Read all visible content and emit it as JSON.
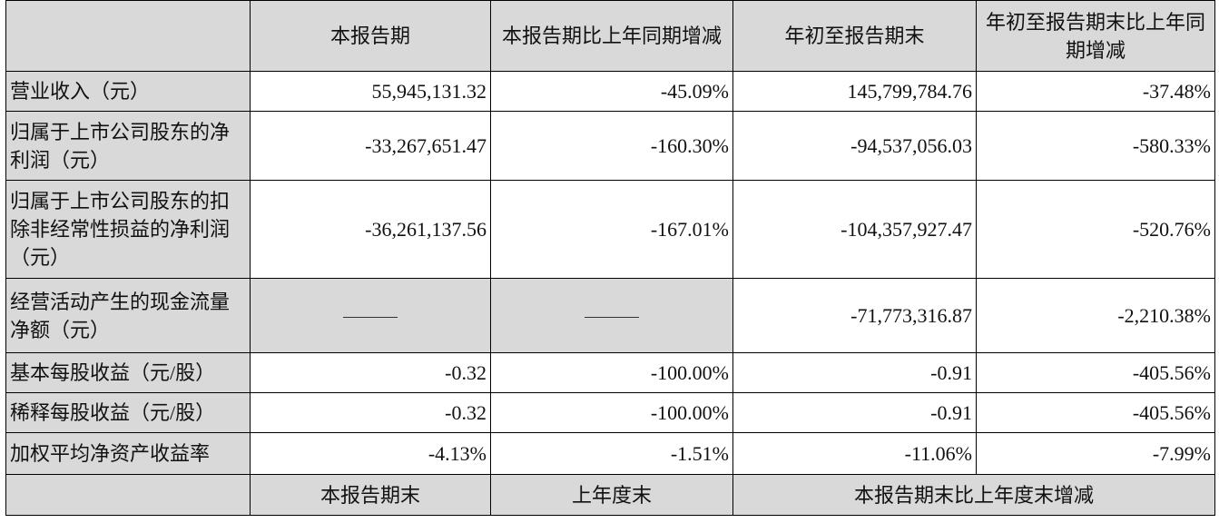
{
  "headers": [
    "",
    "本报告期",
    "本报告期比上年同期增减",
    "年初至报告期末",
    "年初至报告期末比上年同期增减"
  ],
  "rows": [
    {
      "label": "营业收入（元）",
      "values": [
        "55,945,131.32",
        "-45.09%",
        "145,799,784.76",
        "-37.48%"
      ]
    },
    {
      "label": "归属于上市公司股东的净利润（元）",
      "values": [
        "-33,267,651.47",
        "-160.30%",
        "-94,537,056.03",
        "-580.33%"
      ]
    },
    {
      "label": "归属于上市公司股东的扣除非经常性损益的净利润（元）",
      "values": [
        "-36,261,137.56",
        "-167.01%",
        "-104,357,927.47",
        "-520.76%"
      ]
    },
    {
      "label": "经营活动产生的现金流量净额（元）",
      "values": [
        "——",
        "——",
        "-71,773,316.87",
        "-2,210.38%"
      ]
    },
    {
      "label": "基本每股收益（元/股）",
      "values": [
        "-0.32",
        "-100.00%",
        "-0.91",
        "-405.56%"
      ]
    },
    {
      "label": "稀释每股收益（元/股）",
      "values": [
        "-0.32",
        "-100.00%",
        "-0.91",
        "-405.56%"
      ]
    },
    {
      "label": "加权平均净资产收益率",
      "values": [
        "-4.13%",
        "-1.51%",
        "-11.06%",
        "-7.99%"
      ]
    }
  ],
  "footer": [
    "",
    "本报告期末",
    "上年度末",
    "本报告期末比上年度末增减"
  ]
}
